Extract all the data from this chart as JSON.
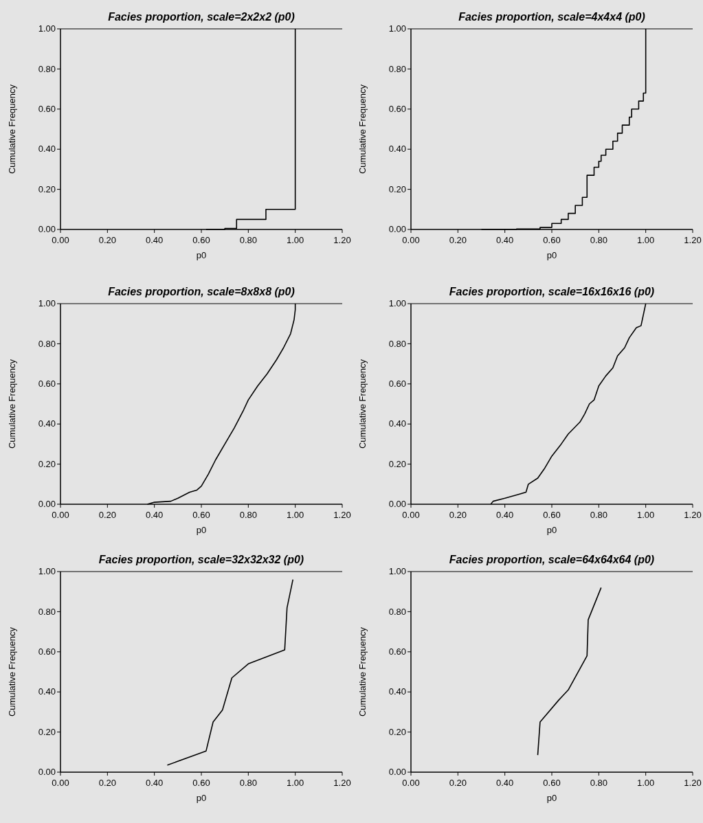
{
  "chart_data": [
    {
      "type": "step",
      "title": "Facies proportion, scale=2x2x2 (p0)",
      "xlabel": "p0",
      "ylabel": "Cumulative Frequency",
      "color": "#000000",
      "xlim": [
        0,
        1.2
      ],
      "ylim": [
        0,
        1
      ],
      "xticks": [
        {
          "value": 0,
          "label": "0.00"
        },
        {
          "value": 0.2,
          "label": "0.20"
        },
        {
          "value": 0.4,
          "label": "0.40"
        },
        {
          "value": 0.6,
          "label": "0.60"
        },
        {
          "value": 0.8,
          "label": "0.80"
        },
        {
          "value": 1,
          "label": "1.00"
        },
        {
          "value": 1.2,
          "label": "1.20"
        }
      ],
      "yticks": [
        {
          "value": 0,
          "label": "0.00"
        },
        {
          "value": 0.2,
          "label": "0.20"
        },
        {
          "value": 0.4,
          "label": "0.40"
        },
        {
          "value": 0.6,
          "label": "0.60"
        },
        {
          "value": 0.8,
          "label": "0.80"
        },
        {
          "value": 1,
          "label": "1.00"
        }
      ],
      "x": [
        0.62,
        0.7,
        0.75,
        0.875,
        1.0
      ],
      "values": [
        0,
        0.005,
        0.05,
        0.1,
        1.0
      ]
    },
    {
      "type": "step",
      "title": "Facies proportion, scale=4x4x4 (p0)",
      "xlabel": "p0",
      "ylabel": "Cumulative Frequency",
      "color": "#000000",
      "xlim": [
        0,
        1.2
      ],
      "ylim": [
        0,
        1
      ],
      "xticks": [
        {
          "value": 0,
          "label": "0.00"
        },
        {
          "value": 0.2,
          "label": "0.20"
        },
        {
          "value": 0.4,
          "label": "0.40"
        },
        {
          "value": 0.6,
          "label": "0.60"
        },
        {
          "value": 0.8,
          "label": "0.80"
        },
        {
          "value": 1,
          "label": "1.00"
        },
        {
          "value": 1.2,
          "label": "1.20"
        }
      ],
      "yticks": [
        {
          "value": 0,
          "label": "0.00"
        },
        {
          "value": 0.2,
          "label": "0.20"
        },
        {
          "value": 0.4,
          "label": "0.40"
        },
        {
          "value": 0.6,
          "label": "0.60"
        },
        {
          "value": 0.8,
          "label": "0.80"
        },
        {
          "value": 1,
          "label": "1.00"
        }
      ],
      "x": [
        0.3,
        0.45,
        0.55,
        0.6,
        0.64,
        0.67,
        0.7,
        0.73,
        0.75,
        0.78,
        0.8,
        0.81,
        0.83,
        0.86,
        0.88,
        0.9,
        0.93,
        0.94,
        0.97,
        0.99,
        1.0
      ],
      "values": [
        0,
        0.002,
        0.01,
        0.03,
        0.05,
        0.08,
        0.12,
        0.16,
        0.27,
        0.31,
        0.34,
        0.37,
        0.4,
        0.44,
        0.48,
        0.52,
        0.56,
        0.6,
        0.64,
        0.68,
        1.0
      ]
    },
    {
      "type": "line",
      "title": "Facies proportion, scale=8x8x8 (p0)",
      "xlabel": "p0",
      "ylabel": "Cumulative Frequency",
      "color": "#000000",
      "xlim": [
        0,
        1.2
      ],
      "ylim": [
        0,
        1
      ],
      "xticks": [
        {
          "value": 0,
          "label": "0.00"
        },
        {
          "value": 0.2,
          "label": "0.20"
        },
        {
          "value": 0.4,
          "label": "0.40"
        },
        {
          "value": 0.6,
          "label": "0.60"
        },
        {
          "value": 0.8,
          "label": "0.80"
        },
        {
          "value": 1,
          "label": "1.00"
        },
        {
          "value": 1.2,
          "label": "1.20"
        }
      ],
      "yticks": [
        {
          "value": 0,
          "label": "0.00"
        },
        {
          "value": 0.2,
          "label": "0.20"
        },
        {
          "value": 0.4,
          "label": "0.40"
        },
        {
          "value": 0.6,
          "label": "0.60"
        },
        {
          "value": 0.8,
          "label": "0.80"
        },
        {
          "value": 1,
          "label": "1.00"
        }
      ],
      "x": [
        0.37,
        0.4,
        0.47,
        0.5,
        0.55,
        0.58,
        0.6,
        0.63,
        0.66,
        0.7,
        0.74,
        0.78,
        0.8,
        0.84,
        0.88,
        0.92,
        0.95,
        0.98,
        0.995,
        1.0,
        1.0
      ],
      "values": [
        0,
        0.01,
        0.015,
        0.03,
        0.06,
        0.07,
        0.09,
        0.15,
        0.22,
        0.3,
        0.38,
        0.47,
        0.52,
        0.59,
        0.65,
        0.72,
        0.78,
        0.85,
        0.92,
        0.97,
        1.0
      ]
    },
    {
      "type": "line",
      "title": "Facies proportion, scale=16x16x16 (p0)",
      "xlabel": "p0",
      "ylabel": "Cumulative Frequency",
      "color": "#000000",
      "xlim": [
        0,
        1.2
      ],
      "ylim": [
        0,
        1
      ],
      "xticks": [
        {
          "value": 0,
          "label": "0.00"
        },
        {
          "value": 0.2,
          "label": "0.20"
        },
        {
          "value": 0.4,
          "label": "0.40"
        },
        {
          "value": 0.6,
          "label": "0.60"
        },
        {
          "value": 0.8,
          "label": "0.80"
        },
        {
          "value": 1,
          "label": "1.00"
        },
        {
          "value": 1.2,
          "label": "1.20"
        }
      ],
      "yticks": [
        {
          "value": 0,
          "label": "0.00"
        },
        {
          "value": 0.2,
          "label": "0.20"
        },
        {
          "value": 0.4,
          "label": "0.40"
        },
        {
          "value": 0.6,
          "label": "0.60"
        },
        {
          "value": 0.8,
          "label": "0.80"
        },
        {
          "value": 1,
          "label": "1.00"
        }
      ],
      "x": [
        0.34,
        0.35,
        0.4,
        0.46,
        0.49,
        0.5,
        0.54,
        0.57,
        0.6,
        0.64,
        0.67,
        0.72,
        0.74,
        0.76,
        0.78,
        0.8,
        0.83,
        0.86,
        0.88,
        0.91,
        0.93,
        0.96,
        0.98,
        1.0
      ],
      "values": [
        0,
        0.015,
        0.03,
        0.05,
        0.06,
        0.1,
        0.13,
        0.18,
        0.24,
        0.3,
        0.35,
        0.41,
        0.45,
        0.5,
        0.52,
        0.59,
        0.64,
        0.68,
        0.74,
        0.78,
        0.83,
        0.88,
        0.89,
        1.0
      ]
    },
    {
      "type": "line",
      "title": "Facies proportion, scale=32x32x32 (p0)",
      "xlabel": "p0",
      "ylabel": "Cumulative Frequency",
      "color": "#000000",
      "xlim": [
        0,
        1.2
      ],
      "ylim": [
        0,
        1
      ],
      "xticks": [
        {
          "value": 0,
          "label": "0.00"
        },
        {
          "value": 0.2,
          "label": "0.20"
        },
        {
          "value": 0.4,
          "label": "0.40"
        },
        {
          "value": 0.6,
          "label": "0.60"
        },
        {
          "value": 0.8,
          "label": "0.80"
        },
        {
          "value": 1,
          "label": "1.00"
        },
        {
          "value": 1.2,
          "label": "1.20"
        }
      ],
      "yticks": [
        {
          "value": 0,
          "label": "0.00"
        },
        {
          "value": 0.2,
          "label": "0.20"
        },
        {
          "value": 0.4,
          "label": "0.40"
        },
        {
          "value": 0.6,
          "label": "0.60"
        },
        {
          "value": 0.8,
          "label": "0.80"
        },
        {
          "value": 1,
          "label": "1.00"
        }
      ],
      "x": [
        0.455,
        0.62,
        0.65,
        0.69,
        0.73,
        0.8,
        0.955,
        0.965,
        0.99
      ],
      "values": [
        0.035,
        0.105,
        0.25,
        0.31,
        0.47,
        0.54,
        0.61,
        0.82,
        0.96
      ]
    },
    {
      "type": "line",
      "title": "Facies proportion, scale=64x64x64 (p0)",
      "xlabel": "p0",
      "ylabel": "Cumulative Frequency",
      "color": "#000000",
      "xlim": [
        0,
        1.2
      ],
      "ylim": [
        0,
        1
      ],
      "xticks": [
        {
          "value": 0,
          "label": "0.00"
        },
        {
          "value": 0.2,
          "label": "0.20"
        },
        {
          "value": 0.4,
          "label": "0.40"
        },
        {
          "value": 0.6,
          "label": "0.60"
        },
        {
          "value": 0.8,
          "label": "0.80"
        },
        {
          "value": 1,
          "label": "1.00"
        },
        {
          "value": 1.2,
          "label": "1.20"
        }
      ],
      "yticks": [
        {
          "value": 0,
          "label": "0.00"
        },
        {
          "value": 0.2,
          "label": "0.20"
        },
        {
          "value": 0.4,
          "label": "0.40"
        },
        {
          "value": 0.6,
          "label": "0.60"
        },
        {
          "value": 0.8,
          "label": "0.80"
        },
        {
          "value": 1,
          "label": "1.00"
        }
      ],
      "x": [
        0.54,
        0.55,
        0.63,
        0.67,
        0.75,
        0.755,
        0.81
      ],
      "values": [
        0.085,
        0.25,
        0.36,
        0.41,
        0.58,
        0.76,
        0.92
      ]
    }
  ]
}
